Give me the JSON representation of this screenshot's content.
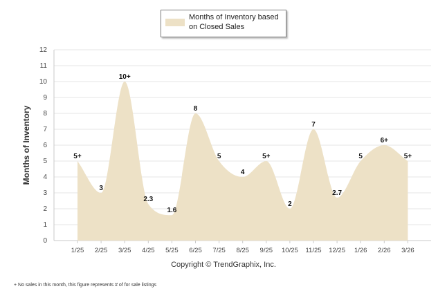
{
  "legend": {
    "label": "Months of Inventory based\non Closed Sales",
    "swatch_color": "#ede1c6"
  },
  "copyright": "Copyright © TrendGraphix, Inc.",
  "footnote": "+  No sales in this month, this figure represents # of for sale listings",
  "chart_data": {
    "type": "area",
    "title": "",
    "xlabel": "",
    "ylabel": "Months of Inventory",
    "ylim": [
      0,
      12
    ],
    "yticks": [
      0,
      1,
      2,
      3,
      4,
      5,
      6,
      7,
      8,
      9,
      10,
      11,
      12
    ],
    "grid": true,
    "legend_position": "top-center",
    "fill_color": "#ede1c6",
    "series": [
      {
        "name": "Months of Inventory based on Closed Sales",
        "categories": [
          "1/25",
          "2/25",
          "3/25",
          "4/25",
          "5/25",
          "6/25",
          "7/25",
          "8/25",
          "9/25",
          "10/25",
          "11/25",
          "12/25",
          "1/26",
          "2/26",
          "3/26"
        ],
        "values": [
          5,
          3,
          10,
          2.3,
          1.6,
          8,
          5,
          4,
          5,
          2,
          7,
          2.7,
          5,
          6,
          5
        ],
        "data_labels": [
          "5+",
          "3",
          "10+",
          "2.3",
          "1.6",
          "8",
          "5",
          "4",
          "5+",
          "2",
          "7",
          "2.7",
          "5",
          "6+",
          "5+"
        ]
      }
    ]
  }
}
